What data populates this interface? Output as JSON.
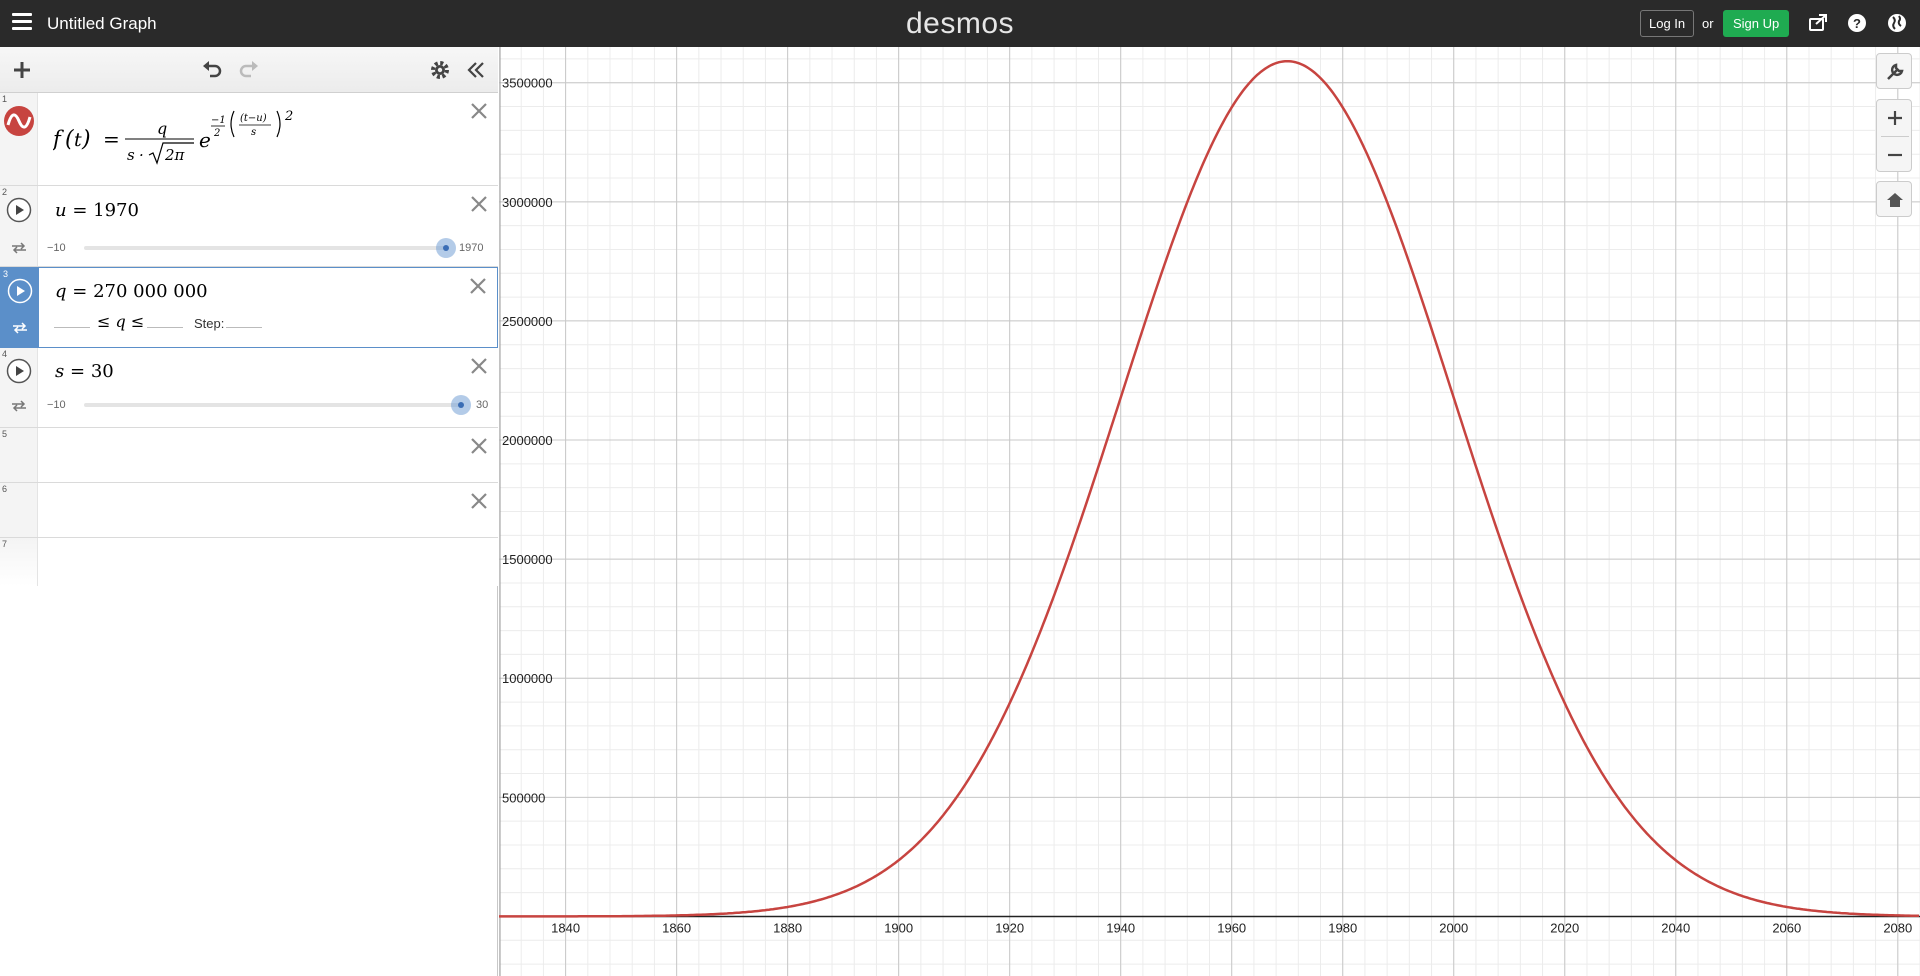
{
  "header": {
    "title": "Untitled Graph",
    "brand": "desmos",
    "login_label": "Log In",
    "or_label": "or",
    "signup_label": "Sign Up",
    "icons": [
      "share-icon",
      "help-icon",
      "globe-icon"
    ]
  },
  "toolbar": {
    "icons": [
      "add-icon",
      "undo-icon",
      "redo-icon",
      "settings-icon",
      "collapse-icon"
    ]
  },
  "expressions": [
    {
      "num": "1",
      "latex_display": "f(t) = q / (s · √(2π)) · e^(−1/2 ((t−u)/s)²)",
      "color": "#c74440"
    },
    {
      "num": "2",
      "var": "u",
      "eq": "=",
      "value": "1970",
      "slider_min": "−10",
      "slider_max": "1970",
      "slider_fraction": 1.0
    },
    {
      "num": "3",
      "var": "q",
      "eq": "=",
      "value": "270 000 000",
      "le": "≤",
      "step_label": "Step:"
    },
    {
      "num": "4",
      "var": "s",
      "eq": "=",
      "value": "30",
      "slider_min": "−10",
      "slider_max": "30",
      "slider_fraction": 1.0
    },
    {
      "num": "5"
    },
    {
      "num": "6"
    },
    {
      "num": "7"
    }
  ],
  "chart_data": {
    "type": "line",
    "function": "f(t) = q/(s*sqrt(2*pi)) * exp(-1/2*((t-u)/s)^2)",
    "params": {
      "u": 1970,
      "q": 270000000,
      "s": 30
    },
    "xlim": [
      1828,
      2084
    ],
    "ylim": [
      -250000,
      3650000
    ],
    "x_ticks": [
      "1840",
      "1860",
      "1880",
      "1900",
      "1920",
      "1940",
      "1960",
      "1980",
      "2000",
      "2020",
      "2040",
      "2060",
      "2080"
    ],
    "y_ticks": [
      "500000",
      "1000000",
      "1500000",
      "2000000",
      "2500000",
      "3000000",
      "3500000"
    ],
    "series": [
      {
        "color": "#c74440"
      }
    ],
    "grid": true
  }
}
